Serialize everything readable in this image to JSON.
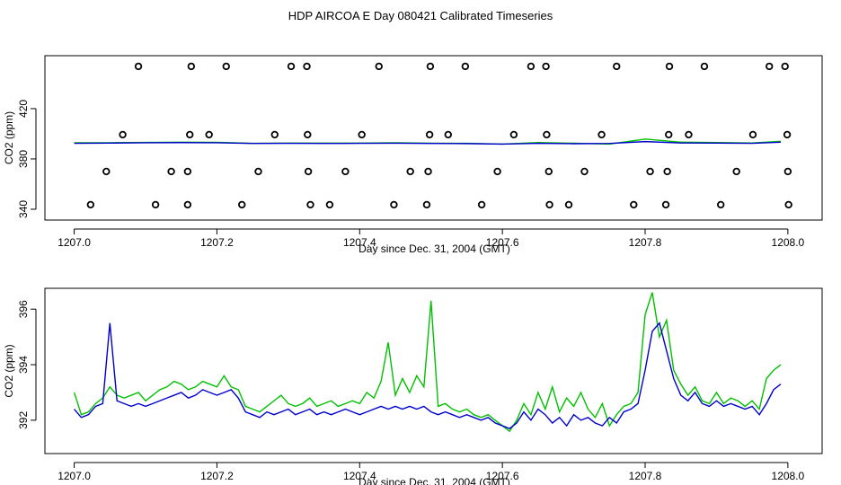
{
  "chart_data": [
    {
      "type": "line",
      "title": "HDP AIRCOA E  Day 080421  Calibrated Timeseries",
      "xlabel": "Day since Dec. 31, 2004 (GMT)",
      "ylabel": "CO2 (ppm)",
      "xlim": [
        1206.959,
        1208.048
      ],
      "ylim": [
        331.4,
        462.1
      ],
      "xticks": [
        {
          "value": 1207,
          "label": "1207.0"
        },
        1207.2,
        1207.4,
        1207.6,
        1207.8,
        {
          "value": 1208,
          "label": "1208.0"
        }
      ],
      "yticks": [
        340,
        380,
        420
      ],
      "x": [
        1207,
        1207.05,
        1207.1,
        1207.15,
        1207.2,
        1207.25,
        1207.3,
        1207.35,
        1207.4,
        1207.45,
        1207.5,
        1207.55,
        1207.6,
        1207.65,
        1207.7,
        1207.75,
        1207.8,
        1207.85,
        1207.9,
        1207.95,
        1207.99
      ],
      "series": [
        {
          "style": "line",
          "color": "#00c000",
          "values": [
            392.9,
            392.9,
            393.1,
            393.3,
            393.2,
            392.4,
            392.6,
            392.6,
            392.6,
            392.9,
            392.5,
            392.4,
            391.8,
            393.0,
            392.5,
            391.8,
            395.8,
            393.3,
            393.0,
            392.7,
            394.0
          ]
        },
        {
          "style": "line",
          "color": "#0000cc",
          "values": [
            392.4,
            392.6,
            392.9,
            393.0,
            392.9,
            392.3,
            392.4,
            392.3,
            392.4,
            392.5,
            392.3,
            392.2,
            391.8,
            392.4,
            392.1,
            392.3,
            393.8,
            392.7,
            392.6,
            392.4,
            393.3
          ]
        },
        {
          "style": "points",
          "color": "#000000",
          "x": [
            1207.09,
            1207.164,
            1207.213,
            1207.304,
            1207.326,
            1207.427,
            1207.499,
            1207.548,
            1207.64,
            1207.661,
            1207.76,
            1207.834,
            1207.883,
            1207.974,
            1207.996,
            1207.068,
            1207.162,
            1207.189,
            1207.281,
            1207.327,
            1207.403,
            1207.498,
            1207.524,
            1207.616,
            1207.662,
            1207.739,
            1207.833,
            1207.861,
            1207.951,
            1207.999,
            1207.045,
            1207.136,
            1207.159,
            1207.258,
            1207.328,
            1207.38,
            1207.471,
            1207.496,
            1207.593,
            1207.665,
            1207.715,
            1207.807,
            1207.831,
            1207.928,
            1208.0,
            1207.023,
            1207.114,
            1207.159,
            1207.235,
            1207.331,
            1207.358,
            1207.448,
            1207.494,
            1207.571,
            1207.666,
            1207.693,
            1207.784,
            1207.829,
            1207.906,
            1208.001
          ],
          "values": [
            453.6,
            453.6,
            453.6,
            453.6,
            453.6,
            453.6,
            453.6,
            453.6,
            453.6,
            453.6,
            453.6,
            453.6,
            453.6,
            453.6,
            453.6,
            399.3,
            399.3,
            399.3,
            399.3,
            399.3,
            399.3,
            399.3,
            399.3,
            399.3,
            399.3,
            399.3,
            399.3,
            399.3,
            399.3,
            399.3,
            370,
            370,
            370,
            370,
            370,
            370,
            370,
            370,
            370,
            370,
            370,
            370,
            370,
            370,
            370,
            343.6,
            343.6,
            343.6,
            343.6,
            343.6,
            343.6,
            343.6,
            343.6,
            343.6,
            343.6,
            343.6,
            343.6,
            343.6,
            343.6,
            343.6
          ]
        }
      ]
    },
    {
      "type": "line",
      "xlabel": "Day since Dec. 31, 2004 (GMT)",
      "ylabel": "CO2 (ppm)",
      "xlim": [
        1206.959,
        1208.048
      ],
      "ylim": [
        390.8,
        396.75
      ],
      "xticks": [
        {
          "value": 1207,
          "label": "1207.0"
        },
        1207.2,
        1207.4,
        1207.6,
        1207.8,
        {
          "value": 1208,
          "label": "1208.0"
        }
      ],
      "yticks": [
        392,
        394,
        396
      ],
      "x": [
        1207,
        1207.01,
        1207.02,
        1207.03,
        1207.04,
        1207.05,
        1207.06,
        1207.07,
        1207.08,
        1207.09,
        1207.1,
        1207.11,
        1207.12,
        1207.13,
        1207.14,
        1207.15,
        1207.16,
        1207.17,
        1207.18,
        1207.19,
        1207.2,
        1207.21,
        1207.22,
        1207.23,
        1207.24,
        1207.25,
        1207.26,
        1207.27,
        1207.28,
        1207.29,
        1207.3,
        1207.31,
        1207.32,
        1207.33,
        1207.34,
        1207.35,
        1207.36,
        1207.37,
        1207.38,
        1207.39,
        1207.4,
        1207.41,
        1207.42,
        1207.43,
        1207.44,
        1207.45,
        1207.46,
        1207.47,
        1207.48,
        1207.49,
        1207.5,
        1207.51,
        1207.52,
        1207.53,
        1207.54,
        1207.55,
        1207.56,
        1207.57,
        1207.58,
        1207.59,
        1207.6,
        1207.61,
        1207.62,
        1207.63,
        1207.64,
        1207.65,
        1207.66,
        1207.67,
        1207.68,
        1207.69,
        1207.7,
        1207.71,
        1207.72,
        1207.73,
        1207.74,
        1207.75,
        1207.76,
        1207.77,
        1207.78,
        1207.79,
        1207.8,
        1207.81,
        1207.82,
        1207.83,
        1207.84,
        1207.85,
        1207.86,
        1207.87,
        1207.88,
        1207.89,
        1207.9,
        1207.91,
        1207.92,
        1207.93,
        1207.94,
        1207.95,
        1207.96,
        1207.97,
        1207.98,
        1207.99
      ],
      "series": [
        {
          "style": "line",
          "color": "#00c000",
          "values": [
            393.0,
            392.2,
            392.3,
            392.6,
            392.8,
            393.2,
            392.9,
            392.8,
            392.9,
            393.0,
            392.7,
            392.9,
            393.1,
            393.2,
            393.4,
            393.3,
            393.1,
            393.2,
            393.4,
            393.3,
            393.2,
            393.6,
            393.2,
            393.1,
            392.5,
            392.4,
            392.3,
            392.5,
            392.7,
            392.9,
            392.6,
            392.5,
            392.6,
            392.8,
            392.5,
            392.6,
            392.7,
            392.5,
            392.6,
            392.7,
            392.6,
            393.0,
            392.8,
            393.4,
            394.8,
            392.9,
            393.5,
            393.0,
            393.6,
            393.2,
            396.3,
            392.5,
            392.6,
            392.4,
            392.3,
            392.4,
            392.2,
            392.1,
            392.2,
            392.0,
            391.8,
            391.6,
            392.0,
            392.6,
            392.2,
            393.0,
            392.4,
            393.2,
            392.3,
            392.8,
            392.5,
            393.0,
            392.4,
            392.1,
            392.6,
            391.8,
            392.2,
            392.5,
            392.6,
            393.0,
            395.8,
            396.6,
            395.0,
            395.6,
            393.8,
            393.3,
            392.9,
            393.2,
            392.7,
            392.6,
            393.0,
            392.6,
            392.8,
            392.7,
            392.5,
            392.7,
            392.4,
            393.5,
            393.8,
            394.0
          ]
        },
        {
          "style": "line",
          "color": "#0000cc",
          "values": [
            392.4,
            392.1,
            392.2,
            392.5,
            392.6,
            395.5,
            392.7,
            392.6,
            392.5,
            392.6,
            392.5,
            392.6,
            392.7,
            392.8,
            392.9,
            393.0,
            392.8,
            392.9,
            393.1,
            393.0,
            392.9,
            393.0,
            393.1,
            392.8,
            392.3,
            392.2,
            392.1,
            392.3,
            392.2,
            392.3,
            392.4,
            392.2,
            392.3,
            392.4,
            392.2,
            392.3,
            392.2,
            392.3,
            392.4,
            392.3,
            392.2,
            392.3,
            392.4,
            392.5,
            392.4,
            392.5,
            392.4,
            392.5,
            392.4,
            392.5,
            392.3,
            392.2,
            392.3,
            392.2,
            392.1,
            392.2,
            392.1,
            392.0,
            392.1,
            391.9,
            391.8,
            391.7,
            391.9,
            392.3,
            392.0,
            392.4,
            392.2,
            391.9,
            392.1,
            391.8,
            392.2,
            392.0,
            392.1,
            391.9,
            391.8,
            392.1,
            391.9,
            392.3,
            392.4,
            392.6,
            393.8,
            395.2,
            395.5,
            394.5,
            393.5,
            392.9,
            392.7,
            393.0,
            392.6,
            392.5,
            392.7,
            392.5,
            392.6,
            392.5,
            392.4,
            392.5,
            392.2,
            392.6,
            393.1,
            393.3
          ]
        }
      ]
    }
  ]
}
